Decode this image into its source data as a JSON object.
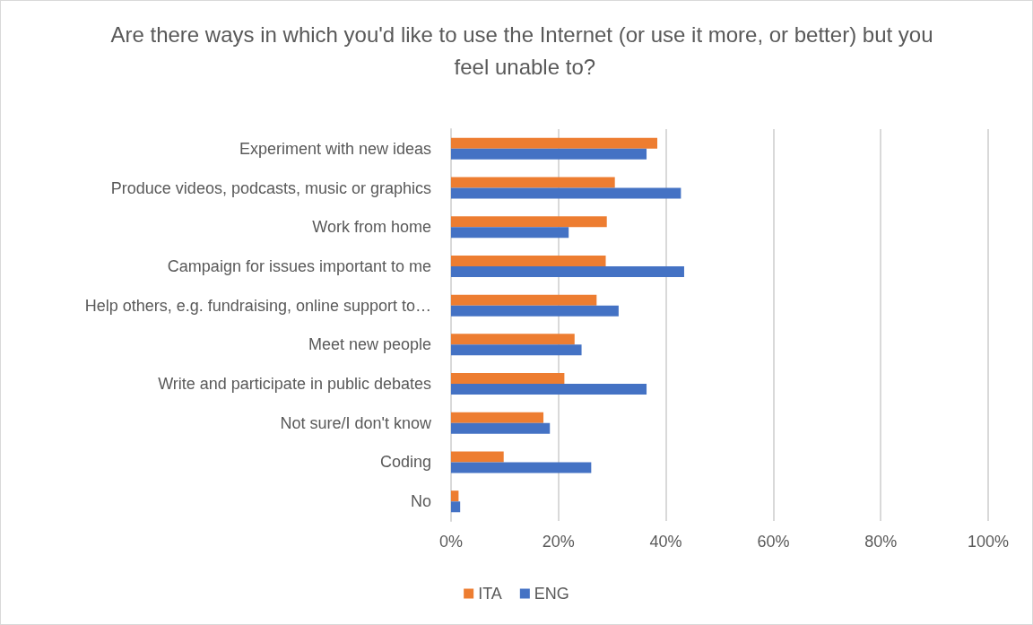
{
  "chart_data": {
    "type": "bar",
    "orientation": "horizontal",
    "title": "Are there ways in which you'd like to use the Internet (or use it more, or better) but you feel unable to?",
    "categories": [
      "Experiment with new ideas",
      "Produce videos, podcasts, music or graphics",
      "Work from home",
      "Campaign for issues important to me",
      "Help others, e.g. fundraising, online support to…",
      "Meet new people",
      "Write and participate in public debates",
      "Not sure/I don't know",
      "Coding",
      "No"
    ],
    "series": [
      {
        "name": "ITA",
        "color": "#ed7d31",
        "values": [
          38.4,
          30.5,
          29.0,
          28.8,
          27.1,
          23.0,
          21.1,
          17.2,
          9.8,
          1.4
        ]
      },
      {
        "name": "ENG",
        "color": "#4472c4",
        "values": [
          36.4,
          42.8,
          21.9,
          43.4,
          31.2,
          24.3,
          36.4,
          18.4,
          26.1,
          1.7
        ]
      }
    ],
    "xlim": [
      0,
      100
    ],
    "xticks": [
      {
        "value": 0,
        "label": "0%"
      },
      {
        "value": 20,
        "label": "20%"
      },
      {
        "value": 40,
        "label": "40%"
      },
      {
        "value": 60,
        "label": "60%"
      },
      {
        "value": 80,
        "label": "80%"
      },
      {
        "value": 100,
        "label": "100%"
      }
    ],
    "grid": "x",
    "legend": "bottom"
  }
}
